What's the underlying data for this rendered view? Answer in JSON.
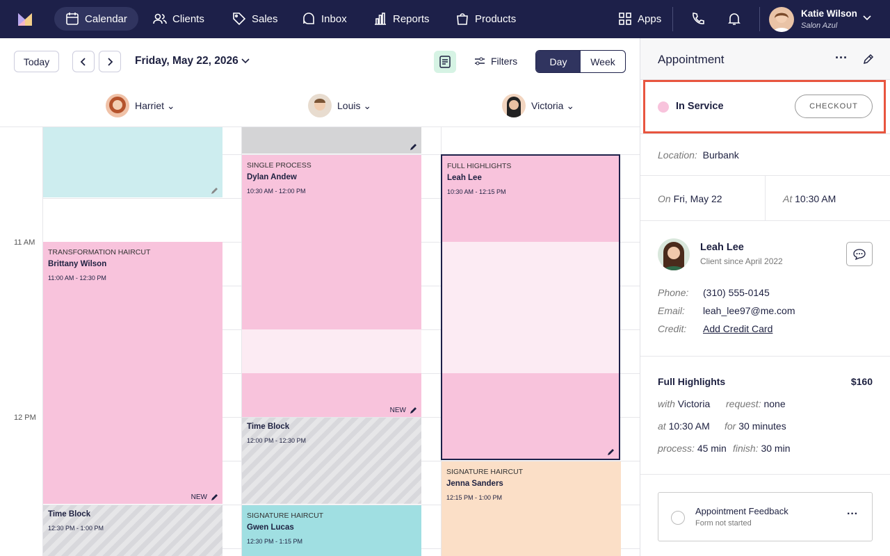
{
  "nav": {
    "items": [
      "Calendar",
      "Clients",
      "Sales",
      "Inbox",
      "Reports",
      "Products"
    ],
    "apps": "Apps",
    "user": {
      "name": "Katie Wilson",
      "org": "Salon Azul"
    }
  },
  "toolbar": {
    "today": "Today",
    "date": "Friday, May 22, 2026",
    "filters": "Filters",
    "views": [
      "Day",
      "Week"
    ]
  },
  "staff": [
    "Harriet",
    "Louis",
    "Victoria"
  ],
  "time_labels": [
    "11 AM",
    "12 PM"
  ],
  "appointments": [
    {
      "service": "TRANSFORMATION HAIRCUT",
      "client": "Brittany Wilson",
      "time": "11:00 AM - 12:30 PM",
      "badge": "NEW"
    },
    {
      "client": "Time Block",
      "time": "12:30 PM - 1:00 PM"
    },
    {
      "service": "SINGLE PROCESS",
      "client": "Dylan Andew",
      "time": "10:30 AM - 12:00 PM",
      "badge": "NEW"
    },
    {
      "client": "Time Block",
      "time": "12:00 PM - 12:30 PM"
    },
    {
      "service": "SIGNATURE HAIRCUT",
      "client": "Gwen Lucas",
      "time": "12:30 PM - 1:15 PM"
    },
    {
      "service": "FULL HIGHLIGHTS",
      "client": "Leah Lee",
      "time": "10:30 AM - 12:15 PM"
    },
    {
      "service": "SIGNATURE HAIRCUT",
      "client": "Jenna Sanders",
      "time": "12:15 PM - 1:00 PM"
    }
  ],
  "panel": {
    "title": "Appointment",
    "status": "In Service",
    "checkout": "CHECKOUT",
    "location_label": "Location:",
    "location": "Burbank",
    "on_label": "On",
    "date": "Fri, May 22",
    "at_label": "At",
    "time": "10:30 AM",
    "client": {
      "name": "Leah Lee",
      "since": "Client since April 2022"
    },
    "contact": [
      [
        "Phone:",
        "(310) 555-0145"
      ],
      [
        "Email:",
        "leah_lee97@me.com"
      ],
      [
        "Credit:",
        "Add Credit Card"
      ]
    ],
    "service": {
      "name": "Full Highlights",
      "price": "$160",
      "details": [
        [
          [
            "with",
            "Victoria"
          ],
          [
            "request:",
            "none"
          ]
        ],
        [
          [
            "at",
            "10:30 AM"
          ],
          [
            "for",
            "30 minutes"
          ]
        ],
        [
          [
            "process:",
            "45 min"
          ],
          [
            "finish:",
            "30 min"
          ]
        ]
      ]
    },
    "feedback": {
      "title": "Appointment Feedback",
      "status": "Form not started"
    }
  }
}
